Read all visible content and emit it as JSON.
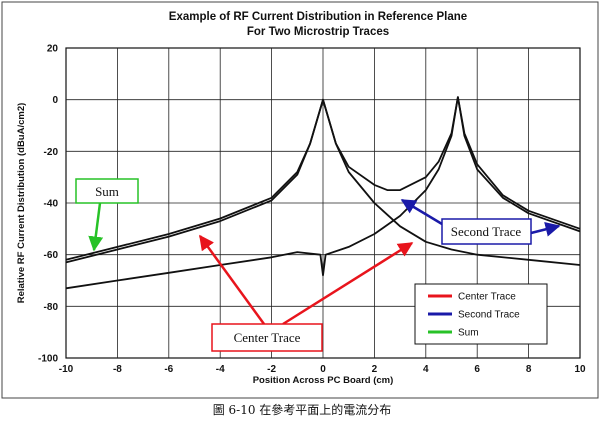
{
  "chart_data": {
    "type": "line",
    "title": "Example of RF Current Distribution in Reference Plane",
    "subtitle": "For Two Microstrip Traces",
    "xlabel": "Position Across PC Board (cm)",
    "ylabel": "Relative RF Current Distribution (dBuA/cm2)",
    "xlim": [
      -10,
      10
    ],
    "ylim": [
      -100,
      20
    ],
    "xticks": [
      -10,
      -8,
      -6,
      -4,
      -2,
      0,
      2,
      4,
      6,
      8,
      10
    ],
    "yticks": [
      20,
      0,
      -20,
      -40,
      -60,
      -80,
      -100
    ],
    "grid": true,
    "legend_position": "bottom-right",
    "series": [
      {
        "name": "Center Trace",
        "color": "#111111",
        "legend_color": "#e8141c",
        "x": [
          -10,
          -8,
          -6,
          -4,
          -2,
          -1,
          -0.5,
          0,
          0.5,
          1,
          2,
          3,
          4,
          5,
          6,
          8,
          10
        ],
        "y": [
          -62,
          -57,
          -52,
          -46,
          -38,
          -28,
          -17,
          0,
          -17,
          -28,
          -40,
          -49,
          -55,
          -58,
          -60,
          -62,
          -64
        ]
      },
      {
        "name": "Second Trace",
        "color": "#111111",
        "legend_color": "#1a1aa8",
        "x": [
          -10,
          -8,
          -6,
          -4,
          -2,
          -1,
          -0.1,
          0,
          0.1,
          0.7,
          1,
          2,
          3,
          4,
          4.5,
          5,
          5.25,
          5.5,
          6,
          7,
          8,
          10
        ],
        "y": [
          -73,
          -70,
          -67,
          -64,
          -61,
          -59,
          -60,
          -68,
          -60,
          -58,
          -57,
          -52,
          -45,
          -35,
          -27,
          -14,
          1,
          -14,
          -27,
          -38,
          -44,
          -51
        ]
      },
      {
        "name": "Sum",
        "color": "#111111",
        "legend_color": "#27c227",
        "x": [
          -10,
          -8,
          -6,
          -4,
          -2,
          -1,
          -0.5,
          0,
          0.5,
          1,
          2,
          2.5,
          3,
          4,
          4.5,
          5,
          5.25,
          5.5,
          6,
          7,
          8,
          10
        ],
        "y": [
          -63,
          -58,
          -53,
          -47,
          -39,
          -29,
          -17,
          0,
          -17,
          -26,
          -33,
          -35,
          -35,
          -30,
          -24,
          -13,
          1,
          -13,
          -25,
          -37,
          -43,
          -50
        ]
      }
    ],
    "annotations": [
      {
        "text": "Sum",
        "color": "#27c227"
      },
      {
        "text": "Center Trace",
        "color": "#e8141c"
      },
      {
        "text": "Second Trace",
        "color": "#1a1aa8"
      }
    ]
  },
  "caption": "圖 6-10 在參考平面上的電流分布"
}
